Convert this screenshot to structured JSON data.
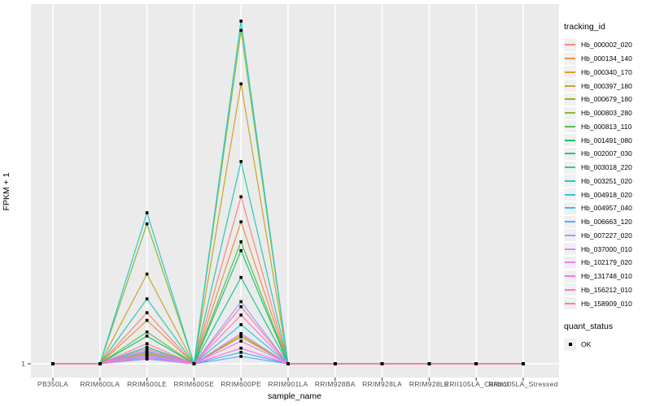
{
  "colors": {
    "panel_bg": "#EBEBEB",
    "grid": "#FFFFFF",
    "point": "#000000",
    "axis_text": "#4D4D4D",
    "title_text": "#000000",
    "legend_key_bg": "#F0F0F0"
  },
  "legend": {
    "tracking_id_title": "tracking_id",
    "quant_status_title": "quant_status",
    "quant_status_items": [
      {
        "label": "OK",
        "marker": "black-square"
      }
    ],
    "position": "right"
  },
  "chart_data": {
    "type": "line",
    "title": "",
    "xlabel": "sample_name",
    "ylabel": "FPKM + 1",
    "y_scale": "log10",
    "y_tick_labels": [
      "1"
    ],
    "ylim": [
      1,
      1000
    ],
    "grid": "vertical-majors-plus-baseline",
    "legend_position": "right",
    "point_marker": "filled-square-black",
    "categories": [
      "PB350LA",
      "RRIM600LA",
      "RRIM600LE",
      "RRIM600SE",
      "RRIM600PE",
      "RRIM901LA",
      "RRIM928BA",
      "RRIM928LA",
      "RRIM928LE",
      "RRII105LA_Control",
      "RRII105LA_Stressed"
    ],
    "series": [
      {
        "name": "Hb_000002_020",
        "color": "#F8877F",
        "values": [
          1,
          1,
          2.8,
          1,
          29,
          1,
          1,
          1,
          1,
          1,
          1
        ]
      },
      {
        "name": "Hb_000134_140",
        "color": "#EE9044",
        "values": [
          1,
          1,
          2.4,
          1,
          17.5,
          1,
          1,
          1,
          1,
          1,
          1
        ]
      },
      {
        "name": "Hb_000340_170",
        "color": "#DD9F22",
        "values": [
          1,
          1,
          1.25,
          1,
          1.78,
          1,
          1,
          1,
          1,
          1,
          1
        ]
      },
      {
        "name": "Hb_000397_180",
        "color": "#C6A52A",
        "values": [
          1,
          1,
          6.1,
          1,
          282,
          1,
          1,
          1,
          1,
          1,
          1
        ]
      },
      {
        "name": "Hb_000679_180",
        "color": "#ABAB22",
        "values": [
          1,
          1,
          1.22,
          1,
          1.72,
          1,
          1,
          1,
          1,
          1,
          1
        ]
      },
      {
        "name": "Hb_000803_280",
        "color": "#8CB92E",
        "values": [
          1,
          1,
          16.8,
          1,
          830,
          1,
          1,
          1,
          1,
          1,
          1
        ]
      },
      {
        "name": "Hb_000813_110",
        "color": "#55C055",
        "values": [
          1,
          1,
          1.9,
          1,
          11.7,
          1,
          1,
          1,
          1,
          1,
          1
        ]
      },
      {
        "name": "Hb_001491_080",
        "color": "#22C266",
        "values": [
          1,
          1,
          1.75,
          1,
          9.8,
          1,
          1,
          1,
          1,
          1,
          1
        ]
      },
      {
        "name": "Hb_002007_030",
        "color": "#22C68D",
        "values": [
          1,
          1,
          1.4,
          1,
          5.7,
          1,
          1,
          1,
          1,
          1,
          1
        ]
      },
      {
        "name": "Hb_003018_220",
        "color": "#2BC9AF",
        "values": [
          1,
          1,
          3.7,
          1,
          59,
          1,
          1,
          1,
          1,
          1,
          1
        ]
      },
      {
        "name": "Hb_003251_020",
        "color": "#2BC8CC",
        "values": [
          1,
          1,
          21,
          1,
          1000,
          1,
          1,
          1,
          1,
          1,
          1
        ]
      },
      {
        "name": "Hb_004918_020",
        "color": "#33C3E3",
        "values": [
          1,
          1,
          1.3,
          1,
          2.2,
          1,
          1,
          1,
          1,
          1,
          1
        ]
      },
      {
        "name": "Hb_004957_040",
        "color": "#44B7F5",
        "values": [
          1,
          1,
          1.15,
          1,
          1.26,
          1,
          1,
          1,
          1,
          1,
          1
        ]
      },
      {
        "name": "Hb_006663_120",
        "color": "#5BA9FF",
        "values": [
          1,
          1,
          1.1,
          1,
          1.16,
          1,
          1,
          1,
          1,
          1,
          1
        ]
      },
      {
        "name": "Hb_007227_020",
        "color": "#9F9BFF",
        "values": [
          1,
          1,
          1.28,
          1,
          3.5,
          1,
          1,
          1,
          1,
          1,
          1
        ]
      },
      {
        "name": "Hb_037000_010",
        "color": "#CC8BFF",
        "values": [
          1,
          1,
          1.2,
          1,
          1.84,
          1,
          1,
          1,
          1,
          1,
          1
        ]
      },
      {
        "name": "Hb_102179_020",
        "color": "#EA7FF5",
        "values": [
          1,
          1,
          1.18,
          1,
          1.58,
          1,
          1,
          1,
          1,
          1,
          1
        ]
      },
      {
        "name": "Hb_131748_010",
        "color": "#FB76DF",
        "values": [
          1,
          1,
          1.12,
          1,
          1.37,
          1,
          1,
          1,
          1,
          1,
          1
        ]
      },
      {
        "name": "Hb_156212_010",
        "color": "#FF76C4",
        "values": [
          1,
          1,
          1.35,
          1,
          2.67,
          1,
          1,
          1,
          1,
          1,
          1
        ]
      },
      {
        "name": "Hb_158909_010",
        "color": "#FF7BA2",
        "values": [
          1,
          1,
          1.5,
          1,
          3.16,
          1,
          1,
          1,
          1,
          1,
          1
        ]
      }
    ]
  }
}
